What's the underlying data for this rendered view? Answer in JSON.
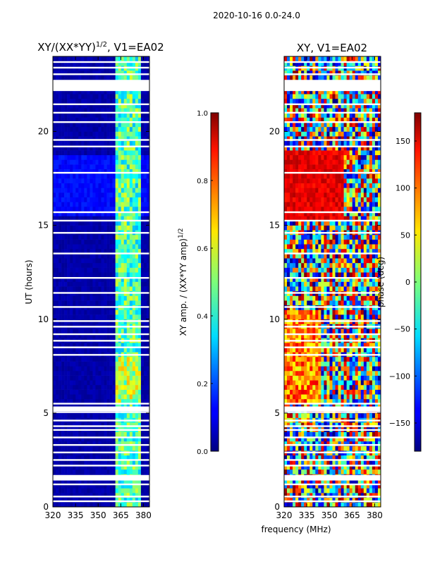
{
  "figure": {
    "suptitle": "2020-10-16 0.0-24.0",
    "xlabel_shared": "frequency (MHz)"
  },
  "chart_data": [
    {
      "type": "heatmap",
      "title_main": "XY/(XX*YY)",
      "title_sup": "1/2",
      "title_tail": ", V1=EA02",
      "xlabel": "",
      "ylabel": "UT (hours)",
      "xlim": [
        320,
        384
      ],
      "ylim": [
        0,
        24
      ],
      "xticks": [
        320,
        335,
        350,
        365,
        380
      ],
      "yticks": [
        0,
        5,
        10,
        15,
        20
      ],
      "colorbar": {
        "label_main": "XY amp. / (XX*YY amp)",
        "label_sup": "1/2",
        "range": [
          0.0,
          1.0
        ],
        "ticks": [
          "0.0",
          "0.2",
          "0.4",
          "0.6",
          "0.8",
          "1.0"
        ],
        "tick_values": [
          0.0,
          0.2,
          0.4,
          0.6,
          0.8,
          1.0
        ]
      },
      "description": "Normalized cross-hand amplitude vs frequency and UT; mostly near 0 (dark blue) below ~362 MHz, elevated (0.3-0.6) in 362-378 MHz band, with raised values 15.5-18.5 h."
    },
    {
      "type": "heatmap",
      "title": "XY, V1=EA02",
      "xlabel": "frequency (MHz)",
      "ylabel": "",
      "xlim": [
        320,
        384
      ],
      "ylim": [
        0,
        24
      ],
      "xticks": [
        320,
        335,
        350,
        365,
        380
      ],
      "yticks": [
        0,
        5,
        10,
        15,
        20
      ],
      "colorbar": {
        "label": "phase (deg)",
        "range": [
          -180,
          180
        ],
        "ticks": [
          "−150",
          "−100",
          "−50",
          "0",
          "50",
          "100",
          "150"
        ],
        "tick_values": [
          -150,
          -100,
          -50,
          0,
          50,
          100,
          150
        ]
      },
      "description": "Cross-hand phase vs frequency and UT; ~150 deg (red) 15-19 h below ~360 MHz, mixed phases elsewhere."
    }
  ]
}
